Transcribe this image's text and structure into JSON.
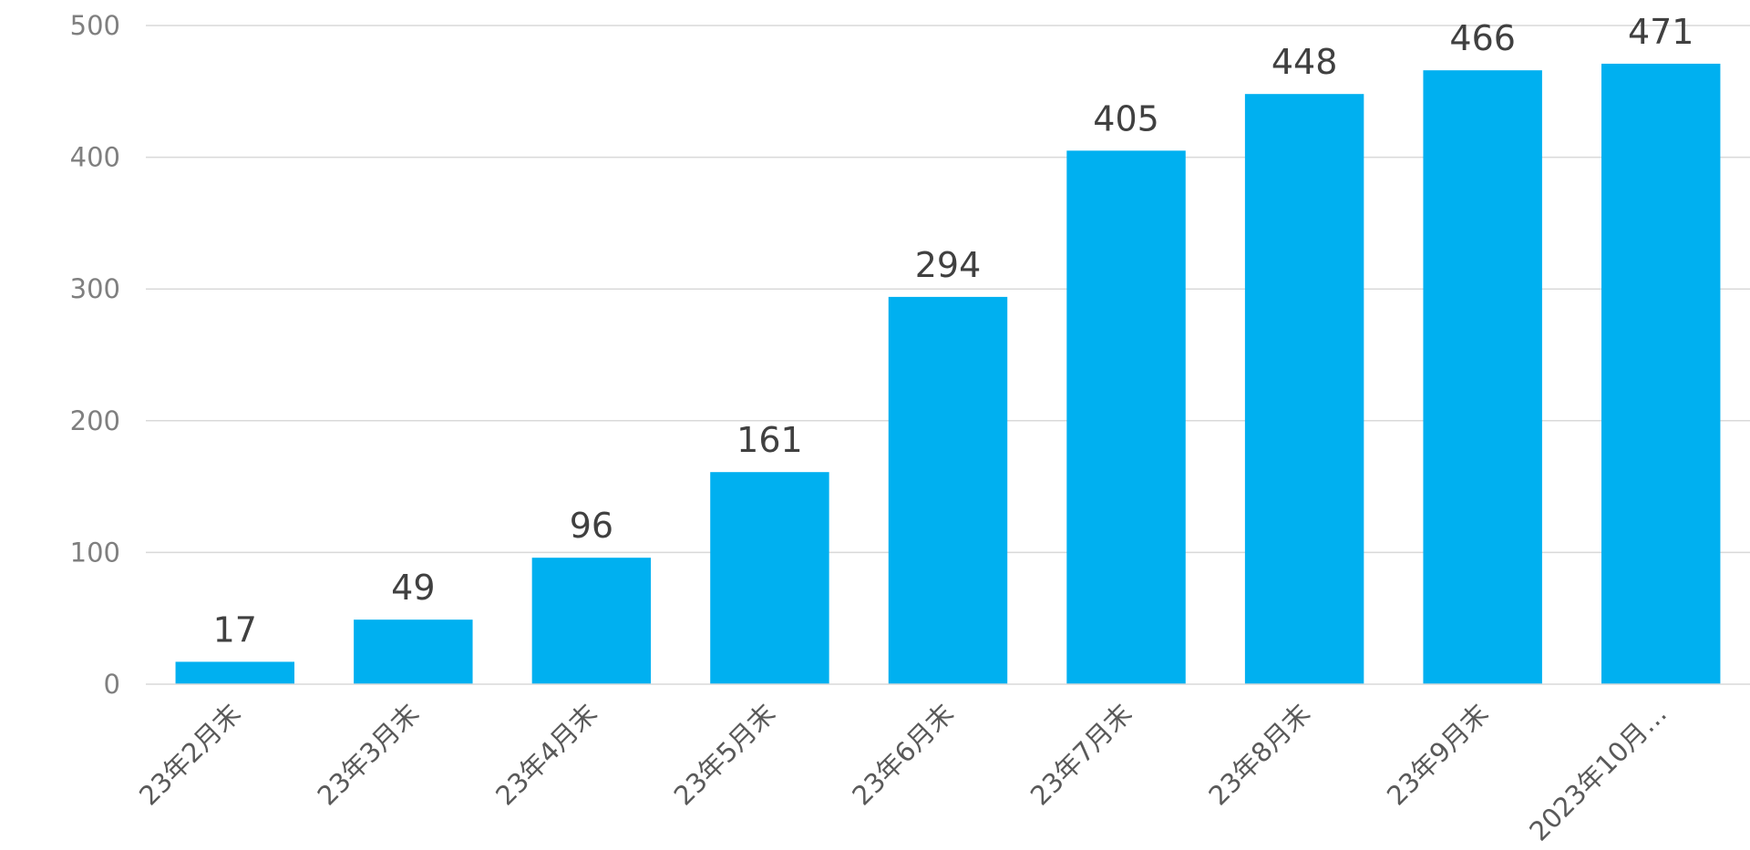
{
  "chart_data": {
    "type": "bar",
    "categories": [
      "23年2月末",
      "23年3月末",
      "23年4月末",
      "23年5月末",
      "23年6月末",
      "23年7月末",
      "23年8月末",
      "23年9月末",
      "2023年10月…"
    ],
    "values": [
      17,
      49,
      96,
      161,
      294,
      405,
      448,
      466,
      471
    ],
    "data_labels": [
      "17",
      "49",
      "96",
      "161",
      "294",
      "405",
      "448",
      "466",
      "471"
    ],
    "yticks": [
      "0",
      "100",
      "200",
      "300",
      "400",
      "500"
    ],
    "ylim": [
      0,
      500
    ],
    "title": "",
    "xlabel": "",
    "ylabel": "",
    "grid": true,
    "legend": "none",
    "bar_color": "#00B0F0"
  }
}
